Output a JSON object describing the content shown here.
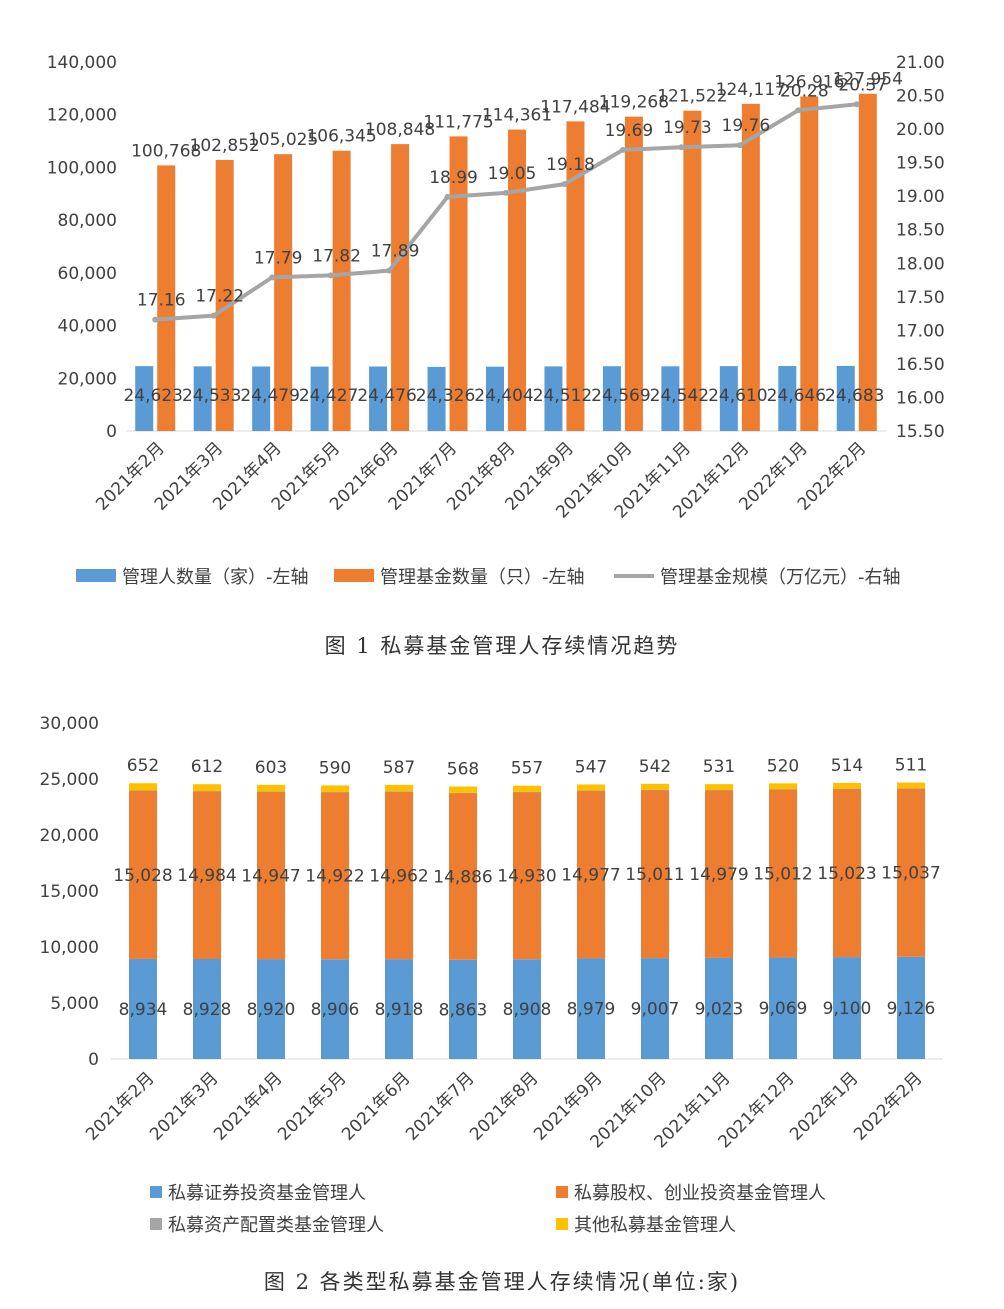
{
  "colors": {
    "blue": "#5B9BD5",
    "orange": "#ED7D31",
    "gray": "#A5A5A5",
    "yellow": "#FFC000",
    "text": "#404040",
    "axis": "#D9D9D9"
  },
  "captions": {
    "fig1": "图 1  私募基金管理人存续情况趋势",
    "fig2": "图 2  各类型私募基金管理人存续情况(单位:家)"
  },
  "chart_data": [
    {
      "type": "bar",
      "combo_line": true,
      "categories": [
        "2021年2月",
        "2021年3月",
        "2021年4月",
        "2021年5月",
        "2021年6月",
        "2021年7月",
        "2021年8月",
        "2021年9月",
        "2021年10月",
        "2021年11月",
        "2021年12月",
        "2022年1月",
        "2022年2月"
      ],
      "series": [
        {
          "name": "管理人数量（家）-左轴",
          "type": "bar",
          "axis": "left",
          "color": "#5B9BD5",
          "values": [
            24623,
            24533,
            24479,
            24427,
            24476,
            24326,
            24404,
            24512,
            24569,
            24542,
            24610,
            24646,
            24683
          ],
          "labels": [
            "24,623",
            "24,533",
            "24,479",
            "24,427",
            "24,476",
            "24,326",
            "24,404",
            "24,512",
            "24,569",
            "24,542",
            "24,610",
            "24,646",
            "24,683"
          ]
        },
        {
          "name": "管理基金数量（只）-左轴",
          "type": "bar",
          "axis": "left",
          "color": "#ED7D31",
          "values": [
            100768,
            102852,
            105025,
            106345,
            108848,
            111775,
            114361,
            117484,
            119268,
            121522,
            124117,
            126916,
            127954
          ],
          "labels": [
            "100,768",
            "102,852",
            "105,025",
            "106,345",
            "108,848",
            "111,775",
            "114,361",
            "117,484",
            "119,268",
            "121,522",
            "124,117",
            "126,916",
            "127,954"
          ]
        },
        {
          "name": "管理基金规模（万亿元）-右轴",
          "type": "line",
          "axis": "right",
          "color": "#A5A5A5",
          "values": [
            17.16,
            17.22,
            17.79,
            17.82,
            17.89,
            18.99,
            19.05,
            19.18,
            19.69,
            19.73,
            19.76,
            20.28,
            20.37
          ],
          "labels": [
            "17.16",
            "17.22",
            "17.79",
            "17.82",
            "17.89",
            "18.99",
            "19.05",
            "19.18",
            "19.69",
            "19.73",
            "19.76",
            "20.28",
            "20.37"
          ]
        }
      ],
      "y_left": {
        "lim": [
          0,
          140000
        ],
        "ticks": [
          "0",
          "20,000",
          "40,000",
          "60,000",
          "80,000",
          "100,000",
          "120,000",
          "140,000"
        ]
      },
      "y_right": {
        "lim": [
          15.5,
          21.0
        ],
        "ticks": [
          "15.50",
          "16.00",
          "16.50",
          "17.00",
          "17.50",
          "18.00",
          "18.50",
          "19.00",
          "19.50",
          "20.00",
          "20.50",
          "21.00"
        ]
      },
      "legend_position": "bottom",
      "grid": false
    },
    {
      "type": "bar",
      "stacked": true,
      "categories": [
        "2021年2月",
        "2021年3月",
        "2021年4月",
        "2021年5月",
        "2021年6月",
        "2021年7月",
        "2021年8月",
        "2021年9月",
        "2021年10月",
        "2021年11月",
        "2021年12月",
        "2022年1月",
        "2022年2月"
      ],
      "series": [
        {
          "name": "私募证券投资基金管理人",
          "color": "#5B9BD5",
          "values": [
            8934,
            8928,
            8920,
            8906,
            8918,
            8863,
            8908,
            8979,
            9007,
            9023,
            9069,
            9100,
            9126
          ],
          "labels": [
            "8,934",
            "8,928",
            "8,920",
            "8,906",
            "8,918",
            "8,863",
            "8,908",
            "8,979",
            "9,007",
            "9,023",
            "9,069",
            "9,100",
            "9,126"
          ]
        },
        {
          "name": "私募股权、创业投资基金管理人",
          "color": "#ED7D31",
          "values": [
            15028,
            14984,
            14947,
            14922,
            14962,
            14886,
            14930,
            14977,
            15011,
            14979,
            15012,
            15023,
            15037
          ],
          "labels": [
            "15,028",
            "14,984",
            "14,947",
            "14,922",
            "14,962",
            "14,886",
            "14,930",
            "14,977",
            "15,011",
            "14,979",
            "15,012",
            "15,023",
            "15,037"
          ]
        },
        {
          "name": "私募资产配置类基金管理人",
          "color": "#A5A5A5",
          "values": [
            9,
            9,
            9,
            9,
            9,
            9,
            9,
            9,
            9,
            9,
            9,
            9,
            9
          ],
          "labels": []
        },
        {
          "name": "其他私募基金管理人",
          "color": "#FFC000",
          "values": [
            652,
            612,
            603,
            590,
            587,
            568,
            557,
            547,
            542,
            531,
            520,
            514,
            511
          ],
          "labels": [
            "652",
            "612",
            "603",
            "590",
            "587",
            "568",
            "557",
            "547",
            "542",
            "531",
            "520",
            "514",
            "511"
          ]
        }
      ],
      "y": {
        "lim": [
          0,
          30000
        ],
        "ticks": [
          "0",
          "5,000",
          "10,000",
          "15,000",
          "20,000",
          "25,000",
          "30,000"
        ]
      },
      "legend_position": "bottom",
      "grid": false
    }
  ]
}
